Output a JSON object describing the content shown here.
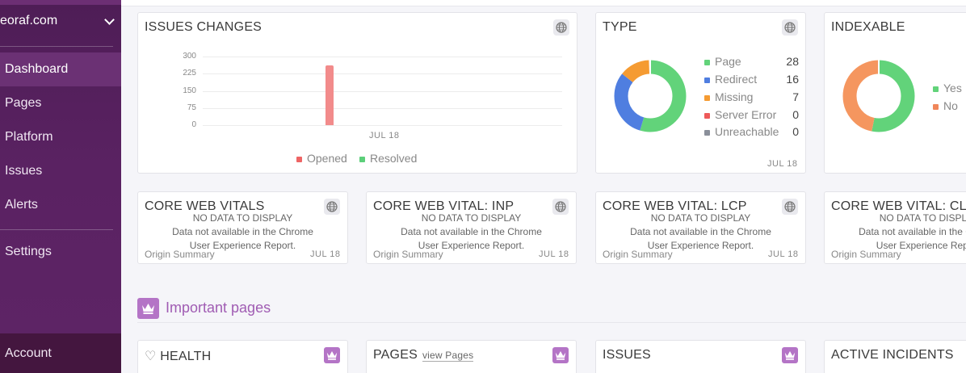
{
  "sidebar": {
    "site": "seoraf.com",
    "items": [
      {
        "label": "Dashboard",
        "active": true
      },
      {
        "label": "Pages"
      },
      {
        "label": "Platform"
      },
      {
        "label": "Issues"
      },
      {
        "label": "Alerts"
      },
      {
        "label": "Settings"
      }
    ],
    "account": "Account"
  },
  "issues_changes": {
    "title": "ISSUES CHANGES",
    "date": "JUL 18",
    "legend": {
      "opened": "Opened",
      "resolved": "Resolved"
    },
    "chart_data": {
      "type": "bar",
      "categories": [
        "JUL 18"
      ],
      "series": [
        {
          "name": "Opened",
          "values": [
            262
          ],
          "color": "#f28b8b"
        },
        {
          "name": "Resolved",
          "values": [
            0
          ],
          "color": "#5ccf7a"
        }
      ],
      "yticks": [
        "300",
        "225",
        "150",
        "75",
        "0"
      ],
      "ylim": [
        0,
        300
      ]
    }
  },
  "type_card": {
    "title": "TYPE",
    "date": "JUL 18",
    "legend": [
      {
        "label": "Page",
        "value": "28",
        "color": "#62d37a"
      },
      {
        "label": "Redirect",
        "value": "16",
        "color": "#4f7ee0"
      },
      {
        "label": "Missing",
        "value": "7",
        "color": "#f59b32"
      },
      {
        "label": "Server Error",
        "value": "0",
        "color": "#ee5a5a"
      },
      {
        "label": "Unreachable",
        "value": "0",
        "color": "#8a8f9a"
      }
    ]
  },
  "indexable_card": {
    "title": "INDEXABLE",
    "legend": [
      {
        "label": "Yes",
        "color": "#62d37a"
      },
      {
        "label": "No",
        "color": "#f0865a"
      }
    ]
  },
  "vitals": [
    {
      "title": "CORE WEB VITALS",
      "nodata": "NO DATA TO DISPLAY",
      "msg1": "Data not available in the Chrome",
      "msg2": "User Experience Report.",
      "origin": "Origin Summary",
      "date": "JUL 18"
    },
    {
      "title": "CORE WEB VITAL: INP",
      "nodata": "NO DATA TO DISPLAY",
      "msg1": "Data not available in the Chrome",
      "msg2": "User Experience Report.",
      "origin": "Origin Summary",
      "date": "JUL 18"
    },
    {
      "title": "CORE WEB VITAL: LCP",
      "nodata": "NO DATA TO DISPLAY",
      "msg1": "Data not available in the Chrome",
      "msg2": "User Experience Report.",
      "origin": "Origin Summary",
      "date": "JUL 18"
    },
    {
      "title": "CORE WEB VITAL: CLS",
      "nodata": "NO DATA TO DISPLAY",
      "msg1": "Data not available in the Chrome",
      "msg2": "User Experience Report.",
      "origin": "Origin Summary",
      "date": ""
    }
  ],
  "important": {
    "title": "Important pages",
    "cards": [
      {
        "title": "HEALTH"
      },
      {
        "title": "PAGES",
        "link": "view Pages"
      },
      {
        "title": "ISSUES"
      },
      {
        "title": "ACTIVE INCIDENTS"
      }
    ]
  }
}
